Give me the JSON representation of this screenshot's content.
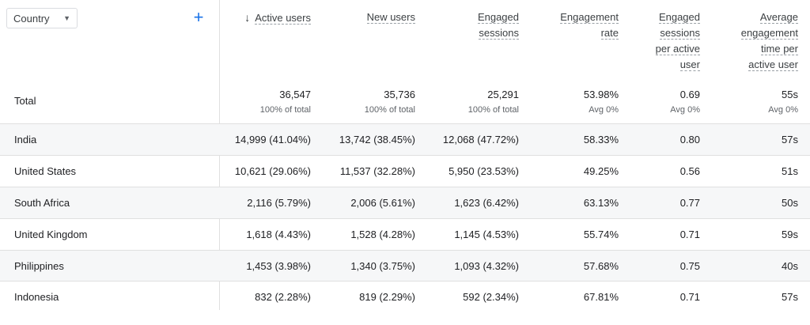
{
  "dimension": {
    "label": "Country"
  },
  "add_dimension": {
    "icon": "+"
  },
  "columns": [
    {
      "label": "Active users",
      "lines": [
        "Active users"
      ],
      "sorted": true
    },
    {
      "label": "New users",
      "lines": [
        "New users"
      ]
    },
    {
      "label": "Engaged sessions",
      "lines": [
        "Engaged",
        "sessions"
      ]
    },
    {
      "label": "Engagement rate",
      "lines": [
        "Engagement",
        "rate"
      ]
    },
    {
      "label": "Engaged sessions per active user",
      "lines": [
        "Engaged",
        "sessions",
        "per active",
        "user"
      ]
    },
    {
      "label": "Average engagement time per active user",
      "lines": [
        "Average",
        "engagement",
        "time per",
        "active user"
      ]
    }
  ],
  "sort_icon": "↓",
  "totals": {
    "label": "Total",
    "values": [
      "36,547",
      "35,736",
      "25,291",
      "53.98%",
      "0.69",
      "55s"
    ],
    "subs": [
      "100% of total",
      "100% of total",
      "100% of total",
      "Avg 0%",
      "Avg 0%",
      "Avg 0%"
    ]
  },
  "rows": [
    {
      "country": "India",
      "cells": [
        "14,999 (41.04%)",
        "13,742 (38.45%)",
        "12,068 (47.72%)",
        "58.33%",
        "0.80",
        "57s"
      ]
    },
    {
      "country": "United States",
      "cells": [
        "10,621 (29.06%)",
        "11,537 (32.28%)",
        "5,950 (23.53%)",
        "49.25%",
        "0.56",
        "51s"
      ]
    },
    {
      "country": "South Africa",
      "cells": [
        "2,116 (5.79%)",
        "2,006 (5.61%)",
        "1,623 (6.42%)",
        "63.13%",
        "0.77",
        "50s"
      ]
    },
    {
      "country": "United Kingdom",
      "cells": [
        "1,618 (4.43%)",
        "1,528 (4.28%)",
        "1,145 (4.53%)",
        "55.74%",
        "0.71",
        "59s"
      ]
    },
    {
      "country": "Philippines",
      "cells": [
        "1,453 (3.98%)",
        "1,340 (3.75%)",
        "1,093 (4.32%)",
        "57.68%",
        "0.75",
        "40s"
      ]
    },
    {
      "country": "Indonesia",
      "cells": [
        "832 (2.28%)",
        "819 (2.29%)",
        "592 (2.34%)",
        "67.81%",
        "0.71",
        "57s"
      ]
    }
  ]
}
